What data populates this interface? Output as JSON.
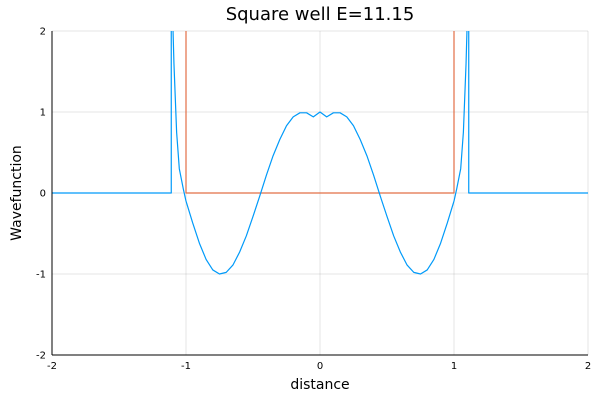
{
  "chart_data": {
    "type": "line",
    "title": "Square well E=11.15",
    "xlabel": "distance",
    "ylabel": "Wavefunction",
    "xlim": [
      -2,
      2
    ],
    "ylim": [
      -2,
      2
    ],
    "xticks": [
      -2,
      -1,
      0,
      1,
      2
    ],
    "yticks": [
      -2,
      -1,
      0,
      1,
      2
    ],
    "xtick_labels": [
      "-2",
      "-1",
      "0",
      "1",
      "2"
    ],
    "ytick_labels": [
      "-2",
      "-1",
      "0",
      "1",
      "2"
    ],
    "grid": true,
    "legend": "none",
    "series": [
      {
        "color": "#e26f46",
        "x": [
          -2,
          -1,
          -1,
          1,
          1,
          2
        ],
        "y": [
          2.2,
          2.2,
          0,
          0,
          2.2,
          2.2
        ]
      },
      {
        "color": "#009af9",
        "x": [
          -2.0,
          -1.5,
          -1.11,
          -1.11,
          -1.1,
          -1.09,
          -1.07,
          -1.05,
          -1.02,
          -1.0,
          -0.95,
          -0.9,
          -0.85,
          -0.8,
          -0.75,
          -0.7,
          -0.65,
          -0.6,
          -0.55,
          -0.5,
          -0.45,
          -0.4,
          -0.35,
          -0.3,
          -0.25,
          -0.2,
          -0.15,
          -0.1,
          -0.05,
          0.0,
          0.05,
          0.1,
          0.15,
          0.2,
          0.25,
          0.3,
          0.35,
          0.4,
          0.45,
          0.5,
          0.55,
          0.6,
          0.65,
          0.7,
          0.75,
          0.8,
          0.85,
          0.9,
          0.95,
          1.0,
          1.02,
          1.05,
          1.07,
          1.09,
          1.1,
          1.11,
          1.11,
          1.5,
          2.0
        ],
        "y": [
          0,
          0,
          0,
          2.2,
          2.2,
          1.6,
          0.75,
          0.3,
          0.05,
          -0.1,
          -0.37,
          -0.62,
          -0.82,
          -0.95,
          -1.0,
          -0.98,
          -0.89,
          -0.73,
          -0.53,
          -0.29,
          -0.04,
          0.22,
          0.46,
          0.66,
          0.83,
          0.94,
          0.99,
          0.99,
          0.94,
          1.0,
          0.94,
          0.99,
          0.99,
          0.94,
          0.83,
          0.66,
          0.46,
          0.22,
          -0.04,
          -0.29,
          -0.53,
          -0.73,
          -0.89,
          -0.98,
          -1.0,
          -0.95,
          -0.82,
          -0.62,
          -0.37,
          -0.1,
          0.05,
          0.3,
          0.75,
          1.6,
          2.2,
          2.2,
          0,
          0,
          0
        ]
      }
    ]
  }
}
